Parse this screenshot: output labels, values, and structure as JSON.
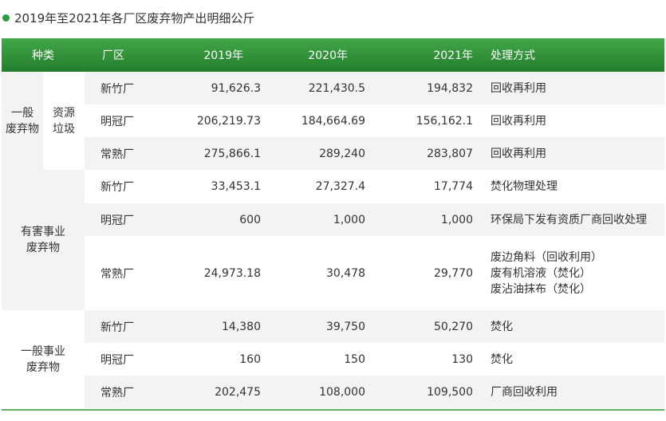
{
  "title": "2019年至2021年各厂区废弃物产出明细公斤",
  "header": {
    "category": "种类",
    "factory": "厂区",
    "y2019": "2019年",
    "y2020": "2020年",
    "y2021": "2021年",
    "method": "处理方式"
  },
  "groups": [
    {
      "category": "一般\n废弃物",
      "subcategory": "资源\n垃圾",
      "rows": [
        {
          "factory": "新竹厂",
          "y2019": "91,626.3",
          "y2020": "221,430.5",
          "y2021": "194,832",
          "method": "回收再利用"
        },
        {
          "factory": "明冠厂",
          "y2019": "206,219.73",
          "y2020": "184,664.69",
          "y2021": "156,162.1",
          "method": "回收再利用"
        },
        {
          "factory": "常熟厂",
          "y2019": "275,866.1",
          "y2020": "289,240",
          "y2021": "283,807",
          "method": "回收再利用"
        }
      ]
    },
    {
      "category": "有害事业\n废弃物",
      "rows": [
        {
          "factory": "新竹厂",
          "y2019": "33,453.1",
          "y2020": "27,327.4",
          "y2021": "17,774",
          "method": "焚化物理处理"
        },
        {
          "factory": "明冠厂",
          "y2019": "600",
          "y2020": "1,000",
          "y2021": "1,000",
          "method": "环保局下发有资质厂商回收处理"
        },
        {
          "factory": "常熟厂",
          "y2019": "24,973.18",
          "y2020": "30,478",
          "y2021": "29,770",
          "method": "废边角料（回收利用）\n废有机溶液（焚化）\n废沾油抹布（焚化）"
        }
      ]
    },
    {
      "category": "一般事业\n废弃物",
      "rows": [
        {
          "factory": "新竹厂",
          "y2019": "14,380",
          "y2020": "39,750",
          "y2021": "50,270",
          "method": "焚化"
        },
        {
          "factory": "明冠厂",
          "y2019": "160",
          "y2020": "150",
          "y2021": "130",
          "method": "焚化"
        },
        {
          "factory": "常熟厂",
          "y2019": "202,475",
          "y2020": "108,000",
          "y2021": "109,500",
          "method": "厂商回收利用"
        }
      ]
    }
  ]
}
